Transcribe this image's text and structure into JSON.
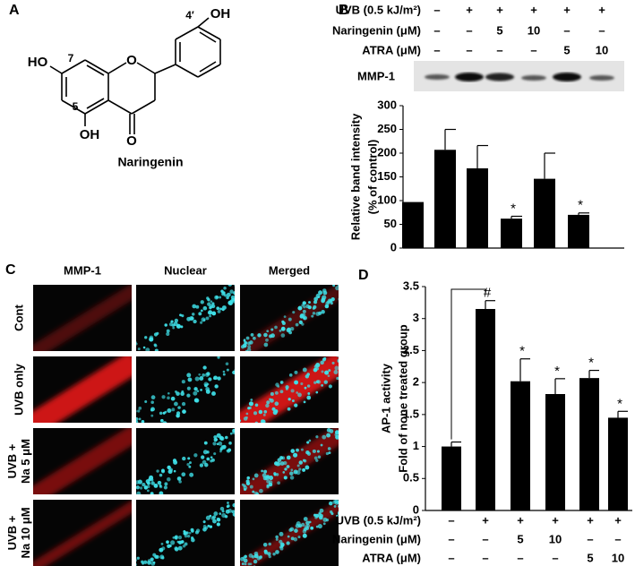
{
  "panel_labels": [
    "A",
    "B",
    "C",
    "D"
  ],
  "structure": {
    "name": "Naringenin",
    "atoms": {
      "ho7": "HO",
      "pos7": "7",
      "pos5": "5",
      "oh5": "OH",
      "ring_o": "O",
      "keto_o": "O",
      "pos4p": "4′",
      "oh4p": "OH"
    }
  },
  "blot": {
    "label": "MMP-1"
  },
  "micrographs": {
    "columns": [
      "MMP-1",
      "Nuclear",
      "Merged"
    ],
    "rows": [
      [
        "Cont"
      ],
      [
        "UVB only"
      ],
      [
        "UVB +",
        "Na 5 μM"
      ],
      [
        "UVB +",
        "Na 10 μM"
      ]
    ]
  },
  "chart_data": [
    {
      "type": "bar",
      "ylabel": [
        "Relative band intensity",
        "(% of control)"
      ],
      "categories": [
        null,
        null,
        null,
        null,
        null,
        null
      ],
      "values": [
        97,
        207,
        168,
        62,
        146,
        70
      ],
      "errors": [
        0,
        43,
        48,
        5,
        54,
        4
      ],
      "annotations": [
        null,
        null,
        null,
        "*",
        null,
        "*"
      ],
      "color": "#000000",
      "ylim": [
        0,
        300
      ],
      "yticks": [
        0,
        50,
        100,
        150,
        200,
        250,
        300
      ],
      "conditions": [
        {
          "label": "UVB (0.5 kJ/m²)",
          "values": [
            "–",
            "+",
            "+",
            "+",
            "+",
            "+"
          ]
        },
        {
          "label": "Naringenin (μM)",
          "values": [
            "–",
            "–",
            "5",
            "10",
            "–",
            "–"
          ]
        },
        {
          "label": "ATRA (μM)",
          "values": [
            "–",
            "–",
            "–",
            "–",
            "5",
            "10"
          ]
        }
      ]
    },
    {
      "type": "bar",
      "ylabel": [
        "AP-1 activity",
        "Fold of none treated group"
      ],
      "categories": [
        null,
        null,
        null,
        null,
        null,
        null
      ],
      "values": [
        1.0,
        3.15,
        2.02,
        1.82,
        2.07,
        1.45
      ],
      "errors": [
        0.07,
        0.13,
        0.35,
        0.24,
        0.12,
        0.1
      ],
      "annotations": [
        null,
        "#",
        "*",
        "*",
        "*",
        "*"
      ],
      "color": "#000000",
      "ylim": [
        0,
        3.5
      ],
      "yticks": [
        0,
        0.5,
        1,
        1.5,
        2,
        2.5,
        3,
        3.5
      ],
      "conditions": [
        {
          "label": "UVB (0.5 kJ/m²)",
          "values": [
            "–",
            "+",
            "+",
            "+",
            "+",
            "+"
          ]
        },
        {
          "label": "Naringenin (μM)",
          "values": [
            "–",
            "–",
            "5",
            "10",
            "–",
            "–"
          ]
        },
        {
          "label": "ATRA (μM)",
          "values": [
            "–",
            "–",
            "–",
            "–",
            "5",
            "10"
          ]
        }
      ]
    }
  ]
}
